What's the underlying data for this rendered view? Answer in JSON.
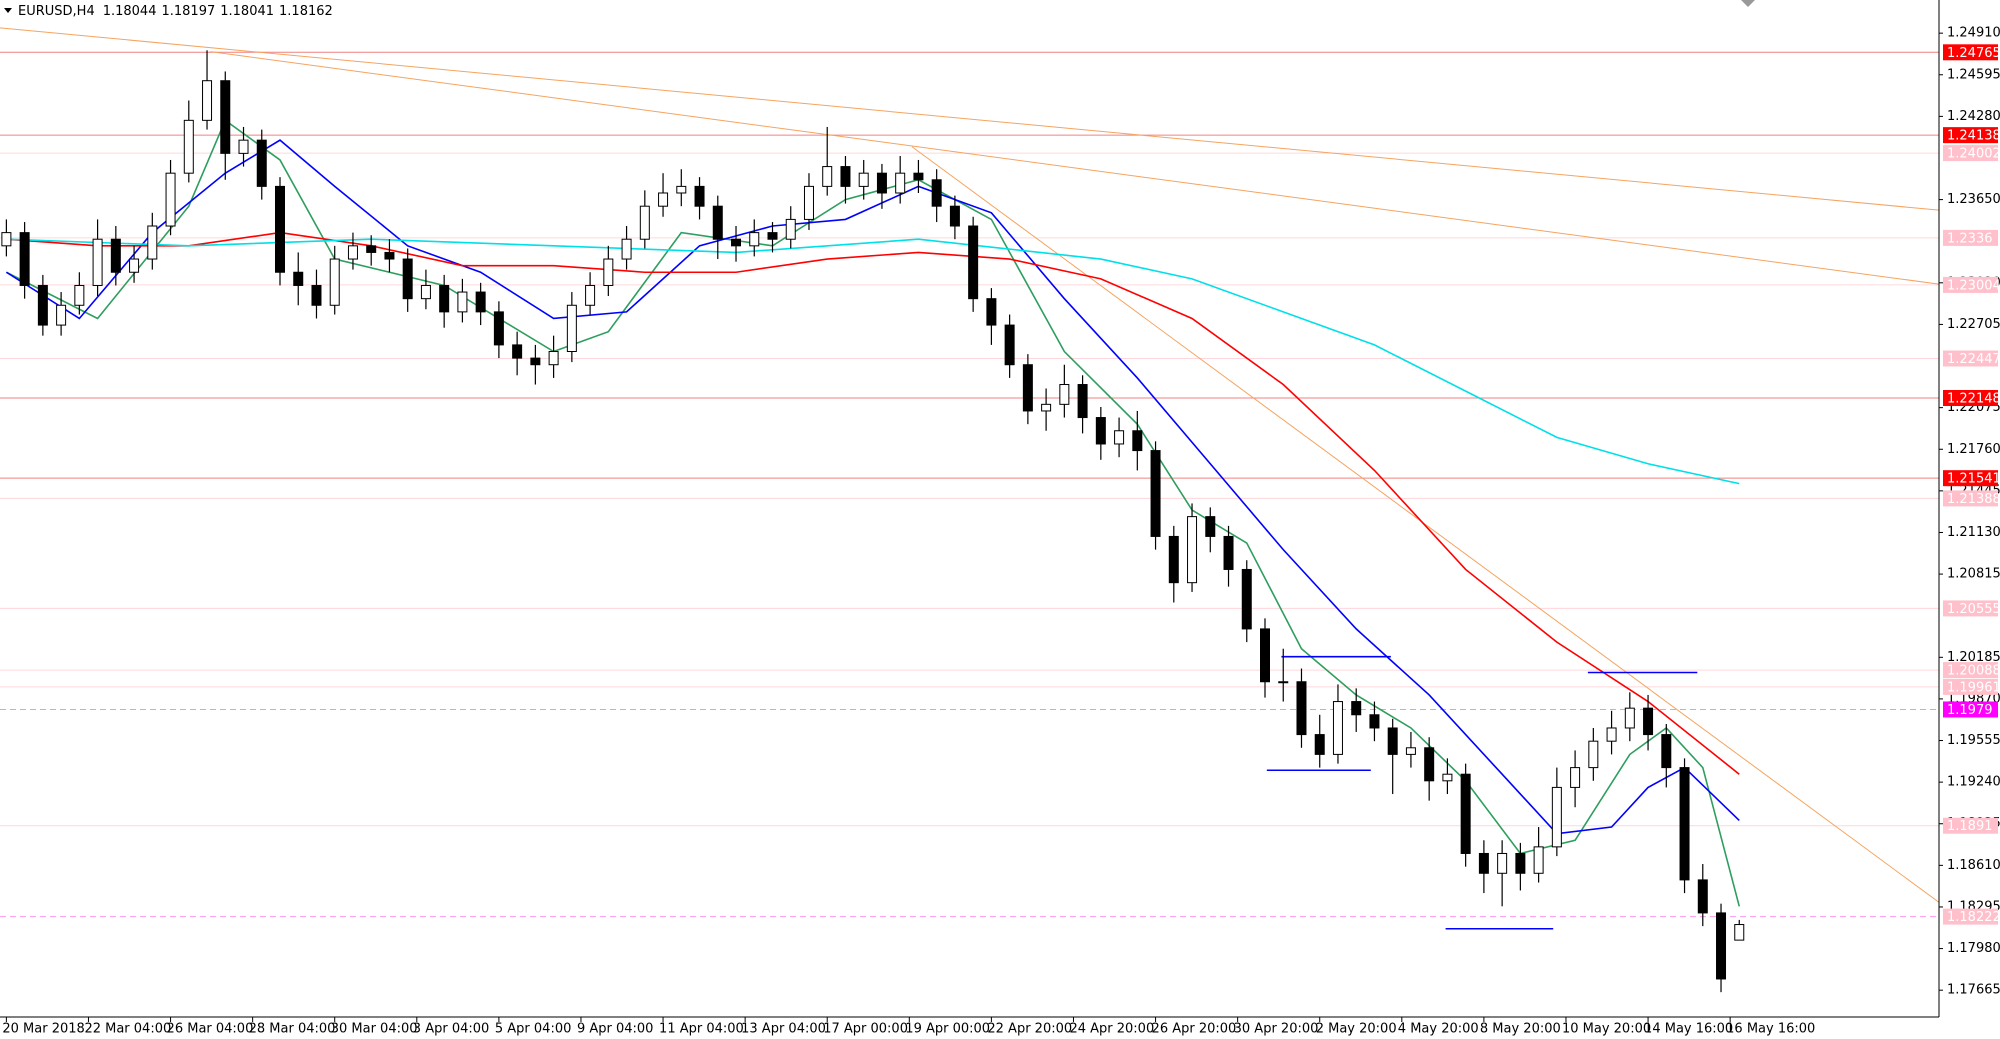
{
  "chart_data": {
    "type": "candlestick",
    "header": {
      "symbol": "EURUSD,H4",
      "ohlc": [
        1.18044,
        1.18197,
        1.18041,
        1.18162
      ]
    },
    "xlim": [
      -0.35,
      105.95
    ],
    "ylim": [
      1.17462,
      1.25161
    ],
    "xticks": [
      {
        "value": 0,
        "label": "20 Mar 2018"
      },
      {
        "value": 4.5,
        "label": "22 Mar 04:00"
      },
      {
        "value": 9,
        "label": "26 Mar 04:00"
      },
      {
        "value": 13.5,
        "label": "28 Mar 04:00"
      },
      {
        "value": 18,
        "label": "30 Mar 04:00"
      },
      {
        "value": 22.5,
        "label": "3 Apr 04:00"
      },
      {
        "value": 27,
        "label": "5 Apr 04:00"
      },
      {
        "value": 31.5,
        "label": "9 Apr 04:00"
      },
      {
        "value": 36,
        "label": "11 Apr 04:00"
      },
      {
        "value": 40.5,
        "label": "13 Apr 04:00"
      },
      {
        "value": 45,
        "label": "17 Apr 00:00"
      },
      {
        "value": 49.5,
        "label": "19 Apr 00:00"
      },
      {
        "value": 54,
        "label": "22 Apr 20:00"
      },
      {
        "value": 58.5,
        "label": "24 Apr 20:00"
      },
      {
        "value": 63,
        "label": "26 Apr 20:00"
      },
      {
        "value": 67.5,
        "label": "30 Apr 20:00"
      },
      {
        "value": 72,
        "label": "2 May 20:00"
      },
      {
        "value": 76.5,
        "label": "4 May 20:00"
      },
      {
        "value": 81,
        "label": "8 May 20:00"
      },
      {
        "value": 85.5,
        "label": "10 May 20:00"
      },
      {
        "value": 90,
        "label": "14 May 16:00"
      },
      {
        "value": 94.5,
        "label": "16 May 16:00"
      }
    ],
    "yticks": [
      {
        "value": 1.2491,
        "label": "1.24910"
      },
      {
        "value": 1.24595,
        "label": "1.24595"
      },
      {
        "value": 1.2428,
        "label": "1.24280"
      },
      {
        "value": 1.2365,
        "label": "1.23650"
      },
      {
        "value": 1.2302,
        "label": "1.23020"
      },
      {
        "value": 1.22705,
        "label": "1.22705"
      },
      {
        "value": 1.22075,
        "label": "1.22075"
      },
      {
        "value": 1.2176,
        "label": "1.21760"
      },
      {
        "value": 1.21445,
        "label": "1.21445"
      },
      {
        "value": 1.2113,
        "label": "1.21130"
      },
      {
        "value": 1.20815,
        "label": "1.20815"
      },
      {
        "value": 1.20185,
        "label": "1.20185"
      },
      {
        "value": 1.1987,
        "label": "1.19870"
      },
      {
        "value": 1.19555,
        "label": "1.19555"
      },
      {
        "value": 1.1924,
        "label": "1.19240"
      },
      {
        "value": 1.18925,
        "label": "1.18925"
      },
      {
        "value": 1.1861,
        "label": "1.18610"
      },
      {
        "value": 1.18295,
        "label": "1.18295"
      },
      {
        "value": 1.1798,
        "label": "1.17980"
      },
      {
        "value": 1.17665,
        "label": "1.17665"
      }
    ],
    "bull_color": "#ffffff",
    "bear_color": "#000000",
    "candles": [
      [
        1.233,
        1.235,
        1.2322,
        1.234
      ],
      [
        1.234,
        1.2348,
        1.229,
        1.23
      ],
      [
        1.23,
        1.2308,
        1.2262,
        1.227
      ],
      [
        1.227,
        1.2295,
        1.2262,
        1.2285
      ],
      [
        1.2285,
        1.231,
        1.2278,
        1.23
      ],
      [
        1.23,
        1.235,
        1.2292,
        1.2335
      ],
      [
        1.2335,
        1.2345,
        1.23,
        1.231
      ],
      [
        1.231,
        1.233,
        1.2302,
        1.232
      ],
      [
        1.232,
        1.2355,
        1.2312,
        1.2345
      ],
      [
        1.2345,
        1.2395,
        1.2338,
        1.2385
      ],
      [
        1.2385,
        1.244,
        1.2378,
        1.2425
      ],
      [
        1.2425,
        1.2478,
        1.2418,
        1.2455
      ],
      [
        1.2455,
        1.2462,
        1.238,
        1.24
      ],
      [
        1.24,
        1.242,
        1.239,
        1.241
      ],
      [
        1.241,
        1.2418,
        1.2365,
        1.2375
      ],
      [
        1.2375,
        1.2382,
        1.23,
        1.231
      ],
      [
        1.231,
        1.2325,
        1.2285,
        1.23
      ],
      [
        1.23,
        1.2312,
        1.2275,
        1.2285
      ],
      [
        1.2285,
        1.233,
        1.2278,
        1.232
      ],
      [
        1.232,
        1.234,
        1.2312,
        1.233
      ],
      [
        1.233,
        1.2338,
        1.2315,
        1.2325
      ],
      [
        1.2325,
        1.2335,
        1.231,
        1.232
      ],
      [
        1.232,
        1.2328,
        1.228,
        1.229
      ],
      [
        1.229,
        1.2312,
        1.2282,
        1.23
      ],
      [
        1.23,
        1.2308,
        1.2268,
        1.228
      ],
      [
        1.228,
        1.2305,
        1.2272,
        1.2295
      ],
      [
        1.2295,
        1.2302,
        1.227,
        1.228
      ],
      [
        1.228,
        1.2288,
        1.2245,
        1.2255
      ],
      [
        1.2255,
        1.2265,
        1.2232,
        1.2245
      ],
      [
        1.2245,
        1.2255,
        1.2225,
        1.224
      ],
      [
        1.224,
        1.2262,
        1.223,
        1.225
      ],
      [
        1.225,
        1.2295,
        1.2242,
        1.2285
      ],
      [
        1.2285,
        1.231,
        1.2278,
        1.23
      ],
      [
        1.23,
        1.233,
        1.2292,
        1.232
      ],
      [
        1.232,
        1.2345,
        1.2312,
        1.2335
      ],
      [
        1.2335,
        1.2372,
        1.2328,
        1.236
      ],
      [
        1.236,
        1.2385,
        1.2352,
        1.237
      ],
      [
        1.237,
        1.2388,
        1.236,
        1.2375
      ],
      [
        1.2375,
        1.2382,
        1.235,
        1.236
      ],
      [
        1.236,
        1.2368,
        1.232,
        1.2335
      ],
      [
        1.2335,
        1.2345,
        1.2318,
        1.233
      ],
      [
        1.233,
        1.235,
        1.2322,
        1.234
      ],
      [
        1.234,
        1.2348,
        1.2325,
        1.2335
      ],
      [
        1.2335,
        1.236,
        1.2328,
        1.235
      ],
      [
        1.235,
        1.2385,
        1.2342,
        1.2375
      ],
      [
        1.2375,
        1.242,
        1.2368,
        1.239
      ],
      [
        1.239,
        1.2398,
        1.2362,
        1.2375
      ],
      [
        1.2375,
        1.2395,
        1.2365,
        1.2385
      ],
      [
        1.2385,
        1.2392,
        1.2358,
        1.237
      ],
      [
        1.237,
        1.2398,
        1.2362,
        1.2385
      ],
      [
        1.2385,
        1.2395,
        1.237,
        1.238
      ],
      [
        1.238,
        1.2388,
        1.2348,
        1.236
      ],
      [
        1.236,
        1.2368,
        1.2335,
        1.2345
      ],
      [
        1.2345,
        1.2352,
        1.228,
        1.229
      ],
      [
        1.229,
        1.2298,
        1.2255,
        1.227
      ],
      [
        1.227,
        1.2278,
        1.223,
        1.224
      ],
      [
        1.224,
        1.2248,
        1.2195,
        1.2205
      ],
      [
        1.2205,
        1.2222,
        1.219,
        1.221
      ],
      [
        1.221,
        1.224,
        1.22,
        1.2225
      ],
      [
        1.2225,
        1.2232,
        1.2188,
        1.22
      ],
      [
        1.22,
        1.2208,
        1.2168,
        1.218
      ],
      [
        1.218,
        1.22,
        1.217,
        1.219
      ],
      [
        1.219,
        1.2205,
        1.216,
        1.2175
      ],
      [
        1.2175,
        1.2182,
        1.21,
        1.211
      ],
      [
        1.211,
        1.2118,
        1.206,
        1.2075
      ],
      [
        1.2075,
        1.2135,
        1.2068,
        1.2125
      ],
      [
        1.2125,
        1.2132,
        1.2098,
        1.211
      ],
      [
        1.211,
        1.2118,
        1.2072,
        1.2085
      ],
      [
        1.2085,
        1.2092,
        1.203,
        1.204
      ],
      [
        1.204,
        1.2048,
        1.1988,
        1.2
      ],
      [
        1.2,
        1.2025,
        1.1985,
        1.2
      ],
      [
        1.2,
        1.201,
        1.195,
        1.196
      ],
      [
        1.196,
        1.1975,
        1.1935,
        1.1945
      ],
      [
        1.1945,
        1.1998,
        1.1938,
        1.1985
      ],
      [
        1.1985,
        1.1995,
        1.1962,
        1.1975
      ],
      [
        1.1975,
        1.1985,
        1.1955,
        1.1965
      ],
      [
        1.1965,
        1.1972,
        1.1915,
        1.1945
      ],
      [
        1.1945,
        1.1962,
        1.1935,
        1.195
      ],
      [
        1.195,
        1.1958,
        1.191,
        1.1925
      ],
      [
        1.1925,
        1.1942,
        1.1915,
        1.193
      ],
      [
        1.193,
        1.1938,
        1.186,
        1.187
      ],
      [
        1.187,
        1.188,
        1.184,
        1.1855
      ],
      [
        1.1855,
        1.188,
        1.183,
        1.187
      ],
      [
        1.187,
        1.1878,
        1.1842,
        1.1855
      ],
      [
        1.1855,
        1.189,
        1.1848,
        1.1875
      ],
      [
        1.1875,
        1.1935,
        1.1868,
        1.192
      ],
      [
        1.192,
        1.1948,
        1.1905,
        1.1935
      ],
      [
        1.1935,
        1.1965,
        1.1925,
        1.1955
      ],
      [
        1.1955,
        1.1978,
        1.1945,
        1.1965
      ],
      [
        1.1965,
        1.1992,
        1.1955,
        1.198
      ],
      [
        1.198,
        1.199,
        1.1948,
        1.196
      ],
      [
        1.196,
        1.1968,
        1.192,
        1.1935
      ],
      [
        1.1935,
        1.1942,
        1.184,
        1.185
      ],
      [
        1.185,
        1.1862,
        1.1815,
        1.1825
      ],
      [
        1.1825,
        1.1832,
        1.1765,
        1.1775
      ],
      [
        1.18044,
        1.18197,
        1.18041,
        1.18162
      ]
    ],
    "series": [
      {
        "color": "#2e9e5e",
        "x": [
          0,
          5,
          10,
          12,
          15,
          18,
          24,
          30,
          33,
          37,
          42,
          46,
          50,
          54,
          58,
          62,
          65,
          68,
          71,
          74,
          77,
          80,
          83,
          86,
          89,
          91,
          93,
          95
        ],
        "values": [
          1.231,
          1.2275,
          1.236,
          1.2425,
          1.2395,
          1.232,
          1.23,
          1.225,
          1.2265,
          1.234,
          1.233,
          1.2365,
          1.238,
          1.235,
          1.225,
          1.2195,
          1.213,
          1.2105,
          1.2025,
          1.199,
          1.1965,
          1.1925,
          1.187,
          1.188,
          1.1945,
          1.1965,
          1.1935,
          1.183
        ]
      },
      {
        "color": "#0000ff",
        "x": [
          0,
          4,
          8,
          12,
          15,
          18,
          22,
          26,
          30,
          34,
          38,
          42,
          46,
          50,
          54,
          58,
          62,
          66,
          70,
          74,
          78,
          82,
          85,
          88,
          90,
          92,
          95
        ],
        "values": [
          1.231,
          1.2275,
          1.234,
          1.2385,
          1.241,
          1.2375,
          1.233,
          1.231,
          1.2275,
          1.228,
          1.233,
          1.2345,
          1.235,
          1.2375,
          1.2355,
          1.229,
          1.223,
          1.2165,
          1.21,
          1.204,
          1.199,
          1.193,
          1.1885,
          1.189,
          1.192,
          1.1935,
          1.1895
        ]
      },
      {
        "color": "#ff0000",
        "x": [
          0,
          5,
          10,
          15,
          20,
          25,
          30,
          35,
          40,
          45,
          50,
          55,
          60,
          65,
          70,
          75,
          80,
          85,
          90,
          95
        ],
        "values": [
          1.2335,
          1.233,
          1.233,
          1.234,
          1.233,
          1.2315,
          1.2315,
          1.231,
          1.231,
          1.232,
          1.2325,
          1.232,
          1.2305,
          1.2275,
          1.2225,
          1.216,
          1.2085,
          1.203,
          1.1985,
          1.193
        ]
      },
      {
        "color": "#00e0e8",
        "x": [
          0,
          10,
          20,
          30,
          40,
          50,
          60,
          65,
          70,
          75,
          80,
          85,
          90,
          95
        ],
        "values": [
          1.2335,
          1.233,
          1.2335,
          1.233,
          1.2325,
          1.2335,
          1.232,
          1.2305,
          1.228,
          1.2255,
          1.222,
          1.2185,
          1.2165,
          1.215
        ]
      }
    ],
    "trendlines": [
      {
        "color": "#f4a460",
        "x": [
          -0.35,
          105.95
        ],
        "y": [
          1.2495,
          1.2357
        ]
      },
      {
        "color": "#f4a460",
        "x": [
          11.19,
          105.95
        ],
        "y": [
          1.2477,
          1.2301
        ]
      },
      {
        "color": "#f4a460",
        "x": [
          49.65,
          105.95
        ],
        "y": [
          1.2405,
          1.1833
        ]
      }
    ],
    "segments": [
      {
        "color": "#0000ff",
        "x": [
          69.9,
          75.9
        ],
        "y": 1.2019
      },
      {
        "color": "#0000ff",
        "x": [
          69.1,
          74.8
        ],
        "y": 1.1933
      },
      {
        "color": "#0000ff",
        "x": [
          78.9,
          84.8
        ],
        "y": 1.1813
      },
      {
        "color": "#0000ff",
        "x": [
          86.7,
          92.7
        ],
        "y": 1.2007
      }
    ],
    "levels": [
      {
        "value": 1.24765,
        "color": "#f08080",
        "label_bg": "#ff0000",
        "style": "solid"
      },
      {
        "value": 1.24138,
        "color": "#f08080",
        "label_bg": "#ff0000",
        "style": "solid"
      },
      {
        "value": 1.24002,
        "color": "#ffd6dc",
        "label_bg": "#ffc0cb",
        "style": "solid"
      },
      {
        "value": 1.2336,
        "color": "#ffd6dc",
        "label_bg": "#ffc0cb",
        "style": "solid"
      },
      {
        "value": 1.23004,
        "color": "#ffd6dc",
        "label_bg": "#ffc0cb",
        "style": "solid"
      },
      {
        "value": 1.22447,
        "color": "#ffd6dc",
        "label_bg": "#ffc0cb",
        "style": "solid"
      },
      {
        "value": 1.22148,
        "color": "#f08080",
        "label_bg": "#ff0000",
        "style": "solid"
      },
      {
        "value": 1.21541,
        "color": "#f08080",
        "label_bg": "#ff0000",
        "style": "solid"
      },
      {
        "value": 1.21388,
        "color": "#ffd6dc",
        "label_bg": "#ffc0cb",
        "style": "solid"
      },
      {
        "value": 1.20555,
        "color": "#ffd6dc",
        "label_bg": "#ffc0cb",
        "style": "solid"
      },
      {
        "value": 1.20088,
        "color": "#ffd6dc",
        "label_bg": "#ffc0cb",
        "style": "solid"
      },
      {
        "value": 1.19961,
        "color": "#ffd6dc",
        "label_bg": "#ffc0cb",
        "style": "solid"
      },
      {
        "value": 1.1979,
        "color": "#ff88ff",
        "label_bg": "#ff00ff",
        "style": "dashed"
      },
      {
        "value": 1.1891,
        "color": "#ffd6dc",
        "label_bg": "#ffc0cb",
        "style": "solid"
      },
      {
        "value": 1.18222,
        "color": "#ff99ee",
        "label_bg": "#ffc0cb",
        "style": "dashed"
      }
    ]
  }
}
